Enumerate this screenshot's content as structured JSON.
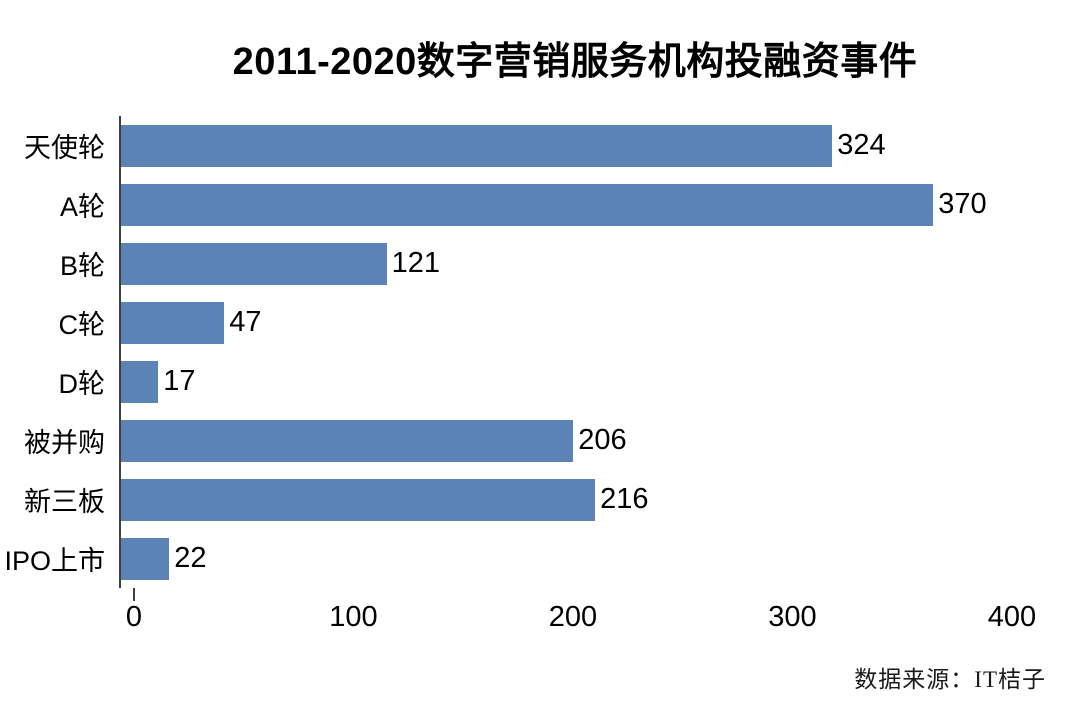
{
  "title": "2011-2020数字营销服务机构投融资事件",
  "source_note": "数据来源：IT桔子",
  "colors": {
    "bar": "#5b83b5",
    "axis_line": "#3f3f3f",
    "text": "#000000",
    "background": "#ffffff"
  },
  "chart_data": {
    "type": "bar",
    "orientation": "horizontal",
    "title": "2011-2020数字营销服务机构投融资事件",
    "categories": [
      "天使轮",
      "A轮",
      "B轮",
      "C轮",
      "D轮",
      "被并购",
      "新三板",
      "IPO上市"
    ],
    "values": [
      324,
      370,
      121,
      47,
      17,
      206,
      216,
      22
    ],
    "xlabel": "",
    "ylabel": "",
    "xlim": [
      0,
      400
    ],
    "xticks": [
      0,
      100,
      200,
      300,
      400
    ],
    "grid": false,
    "legend_position": "none",
    "value_labels_shown": true,
    "bar_color": "#5b83b5",
    "source_note": "数据来源：IT桔子"
  }
}
